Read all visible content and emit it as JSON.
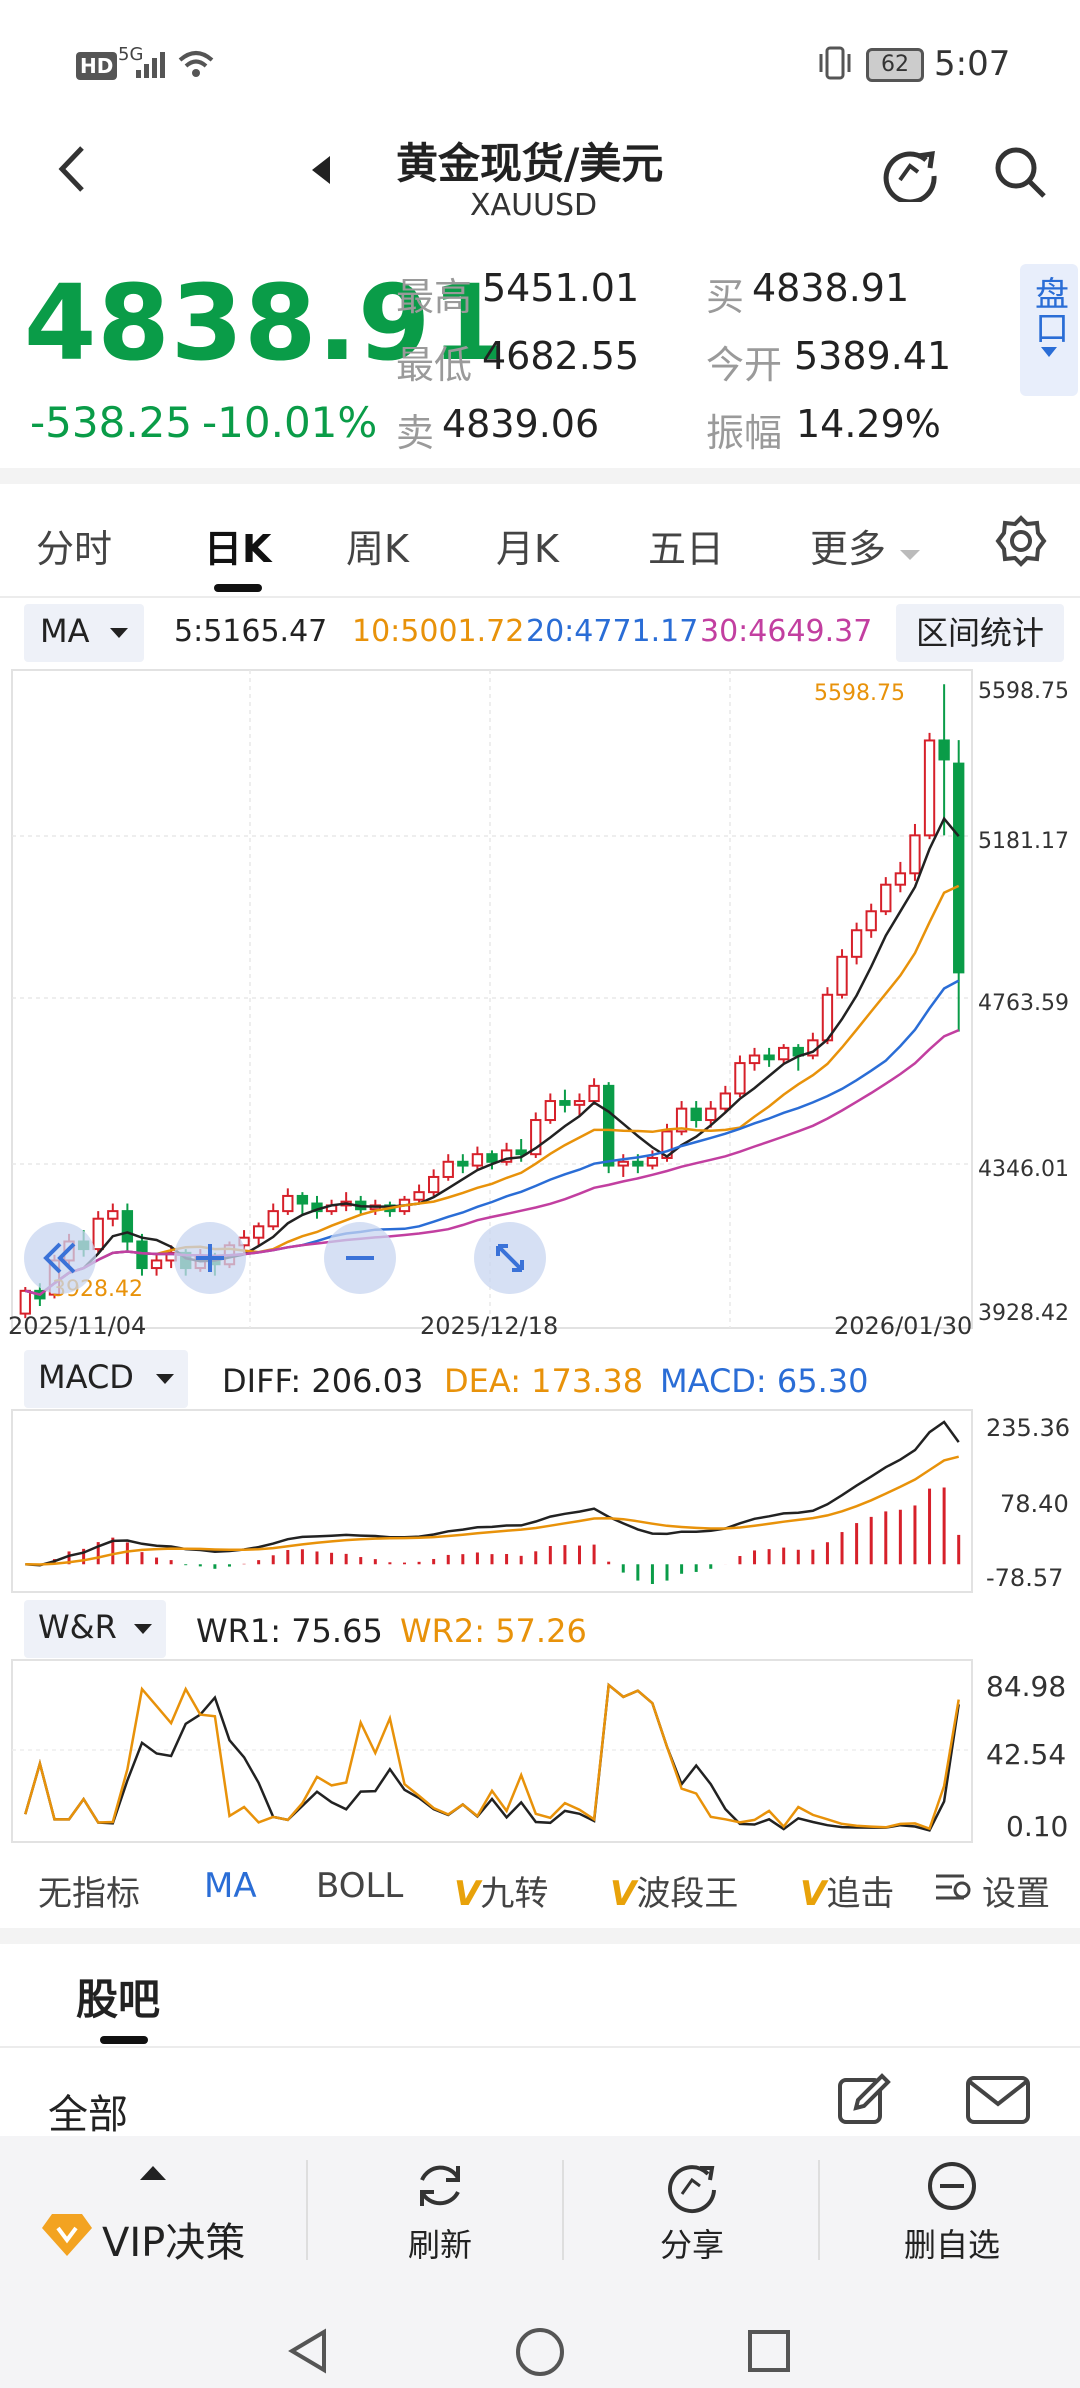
{
  "status_bar": {
    "left_icons": [
      "hd-icon",
      "signal-icon",
      "wifi-icon"
    ],
    "hd_label": "HD",
    "network_label": "5G",
    "battery": "62",
    "time": "5:07"
  },
  "header": {
    "title": "黄金现货/美元",
    "symbol": "XAUUSD"
  },
  "quote": {
    "price": "4838.91",
    "change": "-538.25",
    "change_pct": "-10.01%",
    "high_label": "最高",
    "high": "5451.01",
    "low_label": "最低",
    "low": "4682.55",
    "sell_label": "卖",
    "sell": "4839.06",
    "buy_label": "买",
    "buy": "4838.91",
    "open_label": "今开",
    "open": "5389.41",
    "amp_label": "振幅",
    "amp": "14.29%",
    "panel_btn": "盘口"
  },
  "tabs": {
    "items": [
      "分时",
      "日K",
      "周K",
      "月K",
      "五日",
      "更多"
    ],
    "active": "日K"
  },
  "ma_legend": {
    "indicator": "MA",
    "ma5": "5:5165.47",
    "ma10": "10:5001.72",
    "ma20": "20:4771.17",
    "ma30": "30:4649.37",
    "range_btn": "区间统计",
    "colors": {
      "ma5": "#222222",
      "ma10": "#e8920a",
      "ma20": "#2a6dd6",
      "ma30": "#c23fa0"
    }
  },
  "main_chart": {
    "y_ticks": [
      "5598.75",
      "5181.17",
      "4763.59",
      "4346.01",
      "3928.42"
    ],
    "dates": [
      "2025/11/04",
      "2025/12/18",
      "2026/01/30"
    ],
    "max_marker": "5598.75",
    "min_marker": "3928.42"
  },
  "macd": {
    "indicator": "MACD",
    "diff": "DIFF: 206.03",
    "dea": "DEA: 173.38",
    "macd": "MACD: 65.30",
    "y_ticks": [
      "235.36",
      "78.40",
      "-78.57"
    ]
  },
  "wr": {
    "indicator": "W&R",
    "wr1": "WR1: 75.65",
    "wr2": "WR2: 57.26",
    "y_ticks": [
      "84.98",
      "42.54",
      "0.10"
    ]
  },
  "indicator_bar": {
    "items": [
      "无指标",
      "MA",
      "BOLL",
      "九转",
      "波段王",
      "追击"
    ],
    "settings": "设置"
  },
  "forum": {
    "title": "股吧",
    "filter": "全部"
  },
  "bottom_nav": {
    "vip": "VIP决策",
    "refresh": "刷新",
    "share": "分享",
    "remove": "删自选"
  },
  "chart_data": {
    "type": "candlestick",
    "ylim": [
      3928.42,
      5598.75
    ],
    "candles": [
      {
        "o": 3940,
        "c": 4000,
        "h": 4010,
        "l": 3928
      },
      {
        "o": 4000,
        "c": 3980,
        "h": 4020,
        "l": 3960
      },
      {
        "o": 3990,
        "c": 4080,
        "h": 4095,
        "l": 3980
      },
      {
        "o": 4080,
        "c": 4130,
        "h": 4150,
        "l": 4060
      },
      {
        "o": 4130,
        "c": 4110,
        "h": 4160,
        "l": 4090
      },
      {
        "o": 4110,
        "c": 4190,
        "h": 4210,
        "l": 4100
      },
      {
        "o": 4190,
        "c": 4210,
        "h": 4230,
        "l": 4170
      },
      {
        "o": 4210,
        "c": 4130,
        "h": 4230,
        "l": 4100
      },
      {
        "o": 4130,
        "c": 4060,
        "h": 4150,
        "l": 4040
      },
      {
        "o": 4060,
        "c": 4080,
        "h": 4100,
        "l": 4040
      },
      {
        "o": 4080,
        "c": 4100,
        "h": 4120,
        "l": 4060
      },
      {
        "o": 4100,
        "c": 4060,
        "h": 4110,
        "l": 4040
      },
      {
        "o": 4060,
        "c": 4090,
        "h": 4110,
        "l": 4050
      },
      {
        "o": 4090,
        "c": 4070,
        "h": 4100,
        "l": 4040
      },
      {
        "o": 4070,
        "c": 4120,
        "h": 4130,
        "l": 4060
      },
      {
        "o": 4120,
        "c": 4140,
        "h": 4160,
        "l": 4100
      },
      {
        "o": 4140,
        "c": 4170,
        "h": 4180,
        "l": 4120
      },
      {
        "o": 4170,
        "c": 4210,
        "h": 4230,
        "l": 4160
      },
      {
        "o": 4210,
        "c": 4250,
        "h": 4270,
        "l": 4200
      },
      {
        "o": 4250,
        "c": 4230,
        "h": 4260,
        "l": 4200
      },
      {
        "o": 4230,
        "c": 4210,
        "h": 4250,
        "l": 4190
      },
      {
        "o": 4210,
        "c": 4225,
        "h": 4240,
        "l": 4200
      },
      {
        "o": 4225,
        "c": 4235,
        "h": 4260,
        "l": 4210
      },
      {
        "o": 4235,
        "c": 4215,
        "h": 4250,
        "l": 4200
      },
      {
        "o": 4215,
        "c": 4225,
        "h": 4240,
        "l": 4200
      },
      {
        "o": 4225,
        "c": 4210,
        "h": 4235,
        "l": 4195
      },
      {
        "o": 4210,
        "c": 4240,
        "h": 4250,
        "l": 4200
      },
      {
        "o": 4240,
        "c": 4260,
        "h": 4280,
        "l": 4230
      },
      {
        "o": 4260,
        "c": 4300,
        "h": 4320,
        "l": 4250
      },
      {
        "o": 4300,
        "c": 4340,
        "h": 4360,
        "l": 4290
      },
      {
        "o": 4340,
        "c": 4330,
        "h": 4360,
        "l": 4310
      },
      {
        "o": 4330,
        "c": 4360,
        "h": 4380,
        "l": 4320
      },
      {
        "o": 4360,
        "c": 4340,
        "h": 4370,
        "l": 4320
      },
      {
        "o": 4340,
        "c": 4370,
        "h": 4390,
        "l": 4330
      },
      {
        "o": 4370,
        "c": 4360,
        "h": 4400,
        "l": 4340
      },
      {
        "o": 4360,
        "c": 4450,
        "h": 4470,
        "l": 4350
      },
      {
        "o": 4450,
        "c": 4500,
        "h": 4520,
        "l": 4440
      },
      {
        "o": 4500,
        "c": 4490,
        "h": 4530,
        "l": 4470
      },
      {
        "o": 4490,
        "c": 4500,
        "h": 4520,
        "l": 4460
      },
      {
        "o": 4500,
        "c": 4540,
        "h": 4560,
        "l": 4490
      },
      {
        "o": 4540,
        "c": 4330,
        "h": 4550,
        "l": 4310
      },
      {
        "o": 4330,
        "c": 4340,
        "h": 4360,
        "l": 4300
      },
      {
        "o": 4340,
        "c": 4330,
        "h": 4360,
        "l": 4310
      },
      {
        "o": 4330,
        "c": 4350,
        "h": 4370,
        "l": 4320
      },
      {
        "o": 4350,
        "c": 4420,
        "h": 4440,
        "l": 4340
      },
      {
        "o": 4420,
        "c": 4480,
        "h": 4500,
        "l": 4410
      },
      {
        "o": 4480,
        "c": 4450,
        "h": 4500,
        "l": 4430
      },
      {
        "o": 4450,
        "c": 4480,
        "h": 4500,
        "l": 4430
      },
      {
        "o": 4480,
        "c": 4520,
        "h": 4540,
        "l": 4470
      },
      {
        "o": 4520,
        "c": 4600,
        "h": 4620,
        "l": 4510
      },
      {
        "o": 4600,
        "c": 4620,
        "h": 4640,
        "l": 4580
      },
      {
        "o": 4620,
        "c": 4610,
        "h": 4640,
        "l": 4590
      },
      {
        "o": 4610,
        "c": 4640,
        "h": 4650,
        "l": 4600
      },
      {
        "o": 4640,
        "c": 4620,
        "h": 4650,
        "l": 4580
      },
      {
        "o": 4620,
        "c": 4660,
        "h": 4680,
        "l": 4610
      },
      {
        "o": 4660,
        "c": 4780,
        "h": 4800,
        "l": 4650
      },
      {
        "o": 4780,
        "c": 4880,
        "h": 4900,
        "l": 4770
      },
      {
        "o": 4880,
        "c": 4950,
        "h": 4970,
        "l": 4860
      },
      {
        "o": 4950,
        "c": 5000,
        "h": 5020,
        "l": 4930
      },
      {
        "o": 5000,
        "c": 5070,
        "h": 5090,
        "l": 4990
      },
      {
        "o": 5070,
        "c": 5100,
        "h": 5130,
        "l": 5050
      },
      {
        "o": 5100,
        "c": 5200,
        "h": 5230,
        "l": 5080
      },
      {
        "o": 5200,
        "c": 5450,
        "h": 5470,
        "l": 5190
      },
      {
        "o": 5450,
        "c": 5400,
        "h": 5598,
        "l": 5200
      },
      {
        "o": 5389,
        "c": 4839,
        "h": 5451,
        "l": 4683
      }
    ]
  }
}
